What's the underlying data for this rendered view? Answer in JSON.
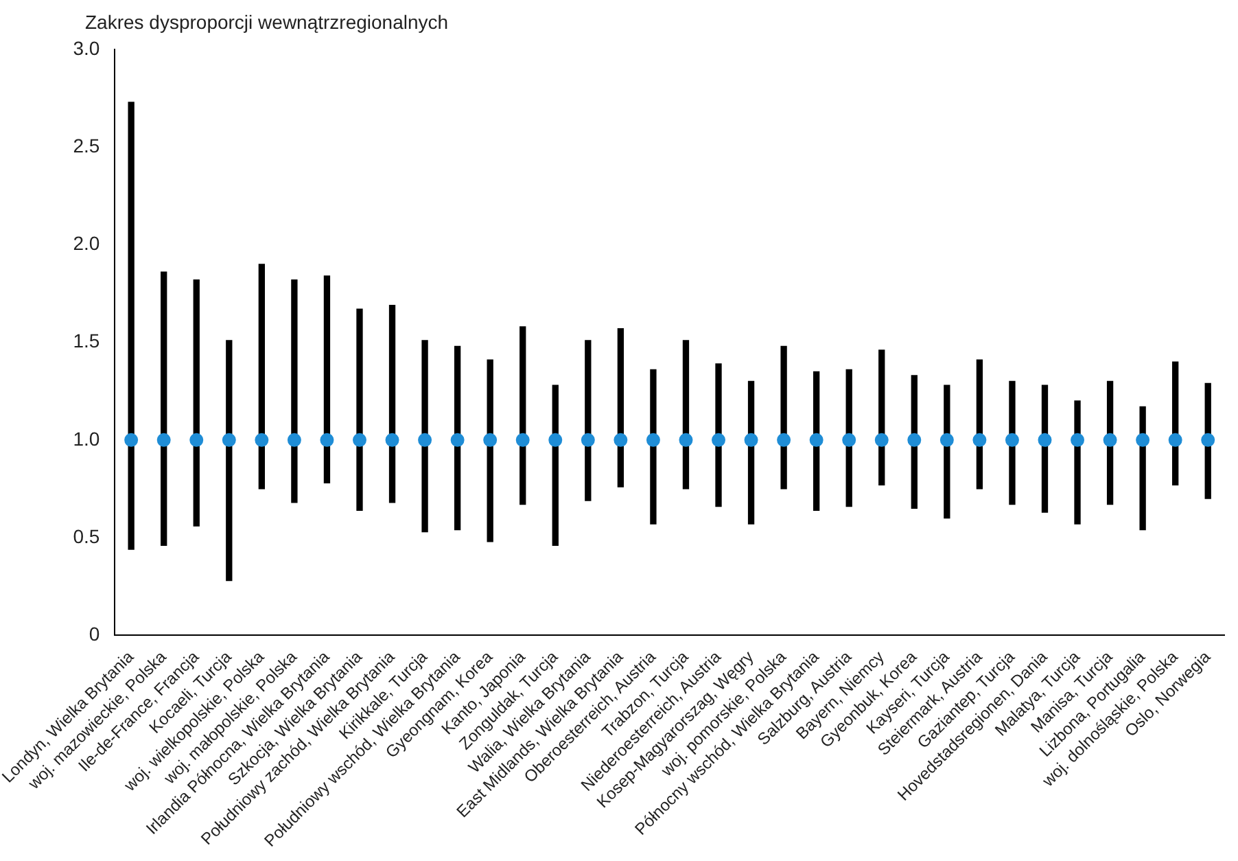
{
  "chart_data": {
    "type": "bar",
    "ylabel": "Zakres dysproporcji wewnątrzregionalnych",
    "categories": [
      "Londyn, Wielka Brytania",
      "woj. mazowieckie, Polska",
      "Ile-de-France, Francja",
      "Kocaeli, Turcja",
      "woj. wielkopolskie, Polska",
      "woj. małopolskie, Polska",
      "Irlandia Północna, Wielka Brytania",
      "Szkocja, Wielka Brytania",
      "Południowy zachód, Wielka Brytania",
      "Kirikkale, Turcja",
      "Południowy wschód, Wielka Brytania",
      "Gyeongnam, Korea",
      "Kanto, Japonia",
      "Zonguldak, Turcja",
      "Walia, Wielka Brytania",
      "East Midlands, Wielka Brytania",
      "Oberoesterreich, Austria",
      "Trabzon, Turcja",
      "Niederoesterreich, Austria",
      "Kosep-Magyarorszag, Węgry",
      "woj. pomorskie, Polska",
      "Północny wschód, Wielka Brytania",
      "Salzburg, Austria",
      "Bayern, Niemcy",
      "Gyeonbuk, Korea",
      "Kayseri, Turcja",
      "Steiermark, Austria",
      "Gaziantep, Turcja",
      "Hovedstadsregionen, Dania",
      "Malatya, Turcja",
      "Manisa, Turcja",
      "Lizbona, Portugalia",
      "woj. dolnośląskie, Polska",
      "Oslo, Norwegia"
    ],
    "series": [
      {
        "color": "#000000",
        "base": [
          0.44,
          0.46,
          0.56,
          0.28,
          0.75,
          0.68,
          0.78,
          0.64,
          0.68,
          0.53,
          0.54,
          0.48,
          0.67,
          0.46,
          0.69,
          0.76,
          0.57,
          0.75,
          0.66,
          0.57,
          0.75,
          0.64,
          0.66,
          0.77,
          0.65,
          0.6,
          0.75,
          0.67,
          0.63,
          0.57,
          0.67,
          0.54,
          0.77,
          0.7
        ],
        "values": [
          2.29,
          1.4,
          1.26,
          1.23,
          1.15,
          1.14,
          1.06,
          1.03,
          1.01,
          0.98,
          0.94,
          0.93,
          0.91,
          0.82,
          0.82,
          0.81,
          0.79,
          0.76,
          0.73,
          0.73,
          0.73,
          0.71,
          0.7,
          0.69,
          0.68,
          0.68,
          0.66,
          0.63,
          0.65,
          0.63,
          0.63,
          0.63,
          0.63,
          0.59
        ]
      },
      {
        "type": "scatter",
        "color": "#1f8dd6",
        "marker": "circle",
        "x": [
          "Londyn, Wielka Brytania",
          "woj. mazowieckie, Polska",
          "Ile-de-France, Francja",
          "Kocaeli, Turcja",
          "woj. wielkopolskie, Polska",
          "woj. małopolskie, Polska",
          "Irlandia Północna, Wielka Brytania",
          "Szkocja, Wielka Brytania",
          "Południowy zachód, Wielka Brytania",
          "Kirikkale, Turcja",
          "Południowy wschód, Wielka Brytania",
          "Gyeongnam, Korea",
          "Kanto, Japonia",
          "Zonguldak, Turcja",
          "Walia, Wielka Brytania",
          "East Midlands, Wielka Brytania",
          "Oberoesterreich, Austria",
          "Trabzon, Turcja",
          "Niederoesterreich, Austria",
          "Kosep-Magyarorszag, Węgry",
          "woj. pomorskie, Polska",
          "Północny wschód, Wielka Brytania",
          "Salzburg, Austria",
          "Bayern, Niemcy",
          "Gyeonbuk, Korea",
          "Kayseri, Turcja",
          "Steiermark, Austria",
          "Gaziantep, Turcja",
          "Hovedstadsregionen, Dania",
          "Malatya, Turcja",
          "Manisa, Turcja",
          "Lizbona, Portugalia",
          "woj. dolnośląskie, Polska",
          "Oslo, Norwegia"
        ],
        "values": [
          1,
          1,
          1,
          1,
          1,
          1,
          1,
          1,
          1,
          1,
          1,
          1,
          1,
          1,
          1,
          1,
          1,
          1,
          1,
          1,
          1,
          1,
          1,
          1,
          1,
          1,
          1,
          1,
          1,
          1,
          1,
          1,
          1,
          1
        ]
      }
    ],
    "ylim": [
      0,
      3
    ],
    "yticks": [
      0,
      {
        "value": 0.5,
        "label": "0.5"
      },
      {
        "value": 1,
        "label": "1.0"
      },
      {
        "value": 1.5,
        "label": "1.5"
      },
      {
        "value": 2,
        "label": "2.0"
      },
      {
        "value": 2.5,
        "label": "2.5"
      },
      {
        "value": 3,
        "label": "3.0"
      }
    ],
    "grid": false,
    "legend": false
  }
}
